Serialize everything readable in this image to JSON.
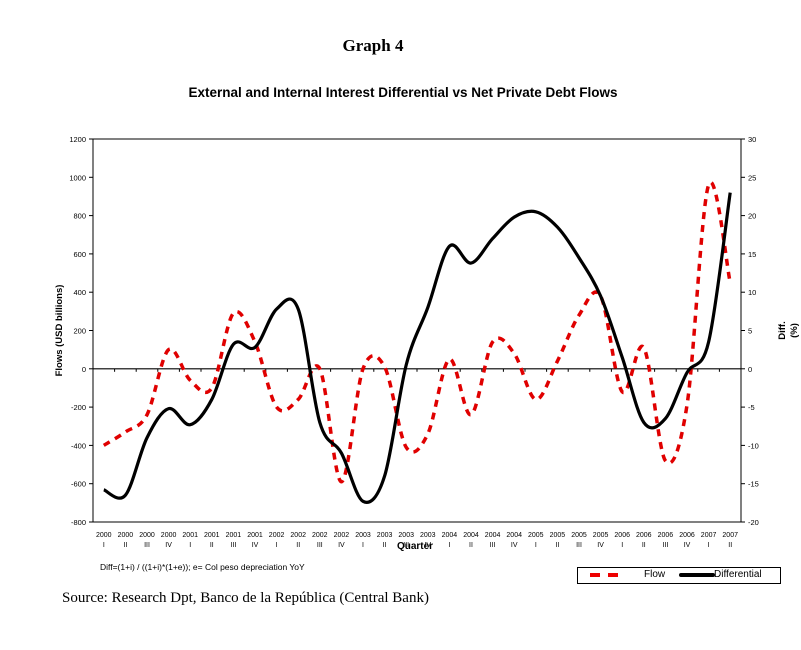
{
  "header": {
    "graph_number": "Graph 4"
  },
  "footer": {
    "note": "Diff=(1+i) / ((1+i)*(1+e)); e= Col peso depreciation YoY",
    "source": "Source: Research Dpt, Banco de la República (Central Bank)"
  },
  "colors": {
    "flow": "#e00000",
    "differential": "#000000"
  },
  "chart_data": {
    "type": "line",
    "title": "External and Internal Interest Differential vs Net Private Debt Flows",
    "xlabel": "Quarter",
    "ylabel": "Flows (USD billions)",
    "y2label": "Diff. (%)",
    "ylim": [
      -800,
      1200
    ],
    "y2lim": [
      -20,
      30
    ],
    "yticks": [
      "1200",
      "1000",
      "800",
      "600",
      "400",
      "200",
      "0",
      "-200",
      "-400",
      "-600",
      "-800"
    ],
    "y2ticks": [
      "30",
      "25",
      "20",
      "15",
      "10",
      "5",
      "0",
      "-5",
      "-10",
      "-15",
      "-20"
    ],
    "categories_year": [
      "2000",
      "2000",
      "2000",
      "2000",
      "2001",
      "2001",
      "2001",
      "2001",
      "2002",
      "2002",
      "2002",
      "2002",
      "2003",
      "2003",
      "2003",
      "2003",
      "2004",
      "2004",
      "2004",
      "2004",
      "2005",
      "2005",
      "2005",
      "2005",
      "2006",
      "2006",
      "2006",
      "2006",
      "2007",
      "2007"
    ],
    "categories_quarter": [
      "I",
      "II",
      "III",
      "IV",
      "I",
      "II",
      "III",
      "IV",
      "I",
      "II",
      "III",
      "IV",
      "I",
      "II",
      "III",
      "IV",
      "I",
      "II",
      "III",
      "IV",
      "I",
      "II",
      "III",
      "IV",
      "I",
      "II",
      "III",
      "IV",
      "I",
      "II"
    ],
    "grid": false,
    "legend": "bottom-right",
    "series": [
      {
        "name": "Flow",
        "axis": "left",
        "style": "dashed",
        "values": [
          -400,
          -330,
          -240,
          100,
          -60,
          -100,
          290,
          140,
          -200,
          -160,
          0,
          -590,
          0,
          10,
          -410,
          -340,
          50,
          -240,
          140,
          80,
          -160,
          40,
          280,
          380,
          -120,
          110,
          -480,
          -190,
          960,
          450
        ]
      },
      {
        "name": "Differential",
        "axis": "right",
        "style": "solid",
        "values": [
          -15.8,
          -16.5,
          -9.0,
          -5.2,
          -7.3,
          -4.0,
          3.2,
          2.8,
          7.8,
          7.8,
          -7.0,
          -11.0,
          -17.3,
          -14.0,
          0.5,
          8.0,
          16.0,
          13.8,
          17.0,
          19.8,
          20.5,
          18.5,
          14.5,
          9.5,
          1.5,
          -7.0,
          -6.5,
          -0.5,
          3.5,
          23.0
        ]
      }
    ]
  }
}
